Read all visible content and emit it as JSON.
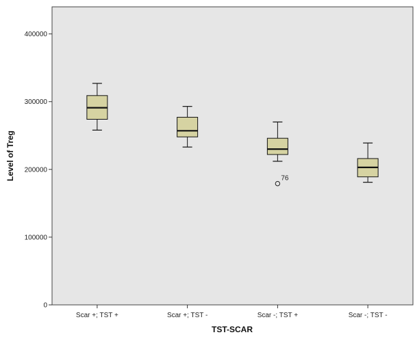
{
  "chart_data": {
    "type": "boxplot",
    "xlabel": "TST-SCAR",
    "ylabel": "Level of Treg",
    "ylim": [
      0,
      440000
    ],
    "yticks": [
      0,
      100000,
      200000,
      300000,
      400000
    ],
    "ytick_labels": [
      "0",
      "100000",
      "200000",
      "300000",
      "400000"
    ],
    "categories": [
      "Scar +; TST +",
      "Scar +; TST -",
      "Scar -; TST +",
      "Scar -; TST -"
    ],
    "boxes": [
      {
        "min": 258000,
        "q1": 274000,
        "median": 291000,
        "q3": 309000,
        "max": 327000,
        "outliers": []
      },
      {
        "min": 233000,
        "q1": 248000,
        "median": 257000,
        "q3": 277000,
        "max": 293000,
        "outliers": []
      },
      {
        "min": 212000,
        "q1": 222000,
        "median": 230000,
        "q3": 246000,
        "max": 270000,
        "outliers": [
          {
            "value": 179000,
            "label": "76"
          }
        ]
      },
      {
        "min": 181000,
        "q1": 189000,
        "median": 203000,
        "q3": 216000,
        "max": 239000,
        "outliers": []
      }
    ],
    "colors": {
      "plot_bg": "#e6e6e6",
      "box_fill": "#d6d3a2",
      "stroke": "#111111"
    },
    "grid": false,
    "legend": "none"
  }
}
